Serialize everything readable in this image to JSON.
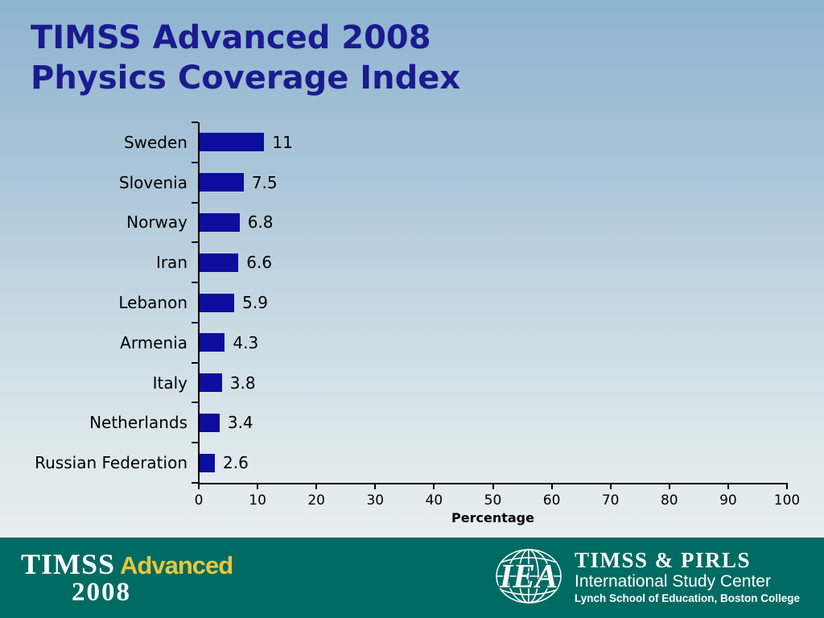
{
  "slide": {
    "title_line1": "TIMSS Advanced 2008",
    "title_line2": "Physics Coverage Index"
  },
  "chart_data": {
    "type": "bar",
    "orientation": "horizontal",
    "title": "TIMSS Advanced 2008 Physics Coverage Index",
    "categories": [
      "Sweden",
      "Slovenia",
      "Norway",
      "Iran",
      "Lebanon",
      "Armenia",
      "Italy",
      "Netherlands",
      "Russian Federation"
    ],
    "values": [
      11,
      7.5,
      6.8,
      6.6,
      5.9,
      4.3,
      3.8,
      3.4,
      2.6
    ],
    "value_labels": [
      "11",
      "7.5",
      "6.8",
      "6.6",
      "5.9",
      "4.3",
      "3.8",
      "3.4",
      "2.6"
    ],
    "xlabel": "Percentage",
    "ylabel": "",
    "xlim": [
      0,
      100
    ],
    "x_ticks": [
      0,
      10,
      20,
      30,
      40,
      50,
      60,
      70,
      80,
      90,
      100
    ],
    "grid": false,
    "legend": false,
    "bar_color": "#0d0d9e",
    "axis_color": "#000000"
  },
  "footer": {
    "left_logo": {
      "timss": "TIMSS",
      "advanced": "Advanced",
      "year": "2008"
    },
    "right_logo": {
      "iea": "IEA",
      "line1": "TIMSS & PIRLS",
      "line2": "International Study Center",
      "line3": "Lynch School of Education, Boston College"
    },
    "background_color": "#006b62",
    "accent_yellow": "#e7c63e"
  },
  "colors": {
    "title_navy": "#1b1b8f",
    "background_top": "#8db4d1",
    "background_bottom": "#e6eef0"
  }
}
